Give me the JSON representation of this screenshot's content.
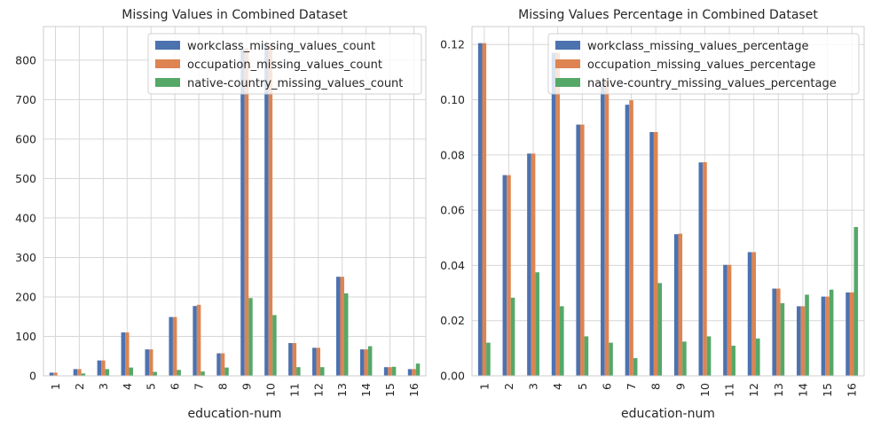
{
  "colors": {
    "workclass": "#4c72b0",
    "occupation": "#dd8452",
    "native_country": "#55a868",
    "grid": "#d6d6d6",
    "frame": "#cccccc",
    "legend_border": "#d0d0d0"
  },
  "chart_data": [
    {
      "type": "bar",
      "title": "Missing Values in Combined Dataset",
      "xlabel": "education-num",
      "ylabel": "",
      "categories": [
        "1",
        "2",
        "3",
        "4",
        "5",
        "6",
        "7",
        "8",
        "9",
        "10",
        "11",
        "12",
        "13",
        "14",
        "15",
        "16"
      ],
      "ylim": [
        0,
        885
      ],
      "yticks": [
        0,
        100,
        200,
        300,
        400,
        500,
        600,
        700,
        800
      ],
      "ytick_labels": [
        "0",
        "100",
        "200",
        "300",
        "400",
        "500",
        "600",
        "700",
        "800"
      ],
      "grid": true,
      "legend_position": "top-right",
      "series": [
        {
          "name": "workclass_missing_values_count",
          "color_key": "workclass",
          "values": [
            8,
            17,
            39,
            110,
            67,
            149,
            177,
            57,
            828,
            835,
            83,
            71,
            251,
            67,
            22,
            17
          ]
        },
        {
          "name": "occupation_missing_values_count",
          "color_key": "occupation",
          "values": [
            8,
            17,
            39,
            110,
            67,
            149,
            180,
            57,
            830,
            838,
            83,
            71,
            251,
            67,
            22,
            17
          ]
        },
        {
          "name": "native-country_missing_values_count",
          "color_key": "native_country",
          "values": [
            1,
            6,
            17,
            21,
            10,
            15,
            11,
            21,
            197,
            154,
            22,
            22,
            209,
            75,
            23,
            31
          ]
        }
      ]
    },
    {
      "type": "bar",
      "title": "Missing Values Percentage in Combined Dataset",
      "xlabel": "education-num",
      "ylabel": "",
      "categories": [
        "1",
        "2",
        "3",
        "4",
        "5",
        "6",
        "7",
        "8",
        "9",
        "10",
        "11",
        "12",
        "13",
        "14",
        "15",
        "16"
      ],
      "ylim": [
        0,
        0.1265
      ],
      "yticks": [
        0,
        0.02,
        0.04,
        0.06,
        0.08,
        0.1,
        0.12
      ],
      "ytick_labels": [
        "0.00",
        "0.02",
        "0.04",
        "0.06",
        "0.08",
        "0.10",
        "0.12"
      ],
      "grid": true,
      "legend_position": "top-right",
      "series": [
        {
          "name": "workclass_missing_values_percentage",
          "color_key": "workclass",
          "values": [
            0.1205,
            0.0727,
            0.0805,
            0.117,
            0.091,
            0.1062,
            0.0982,
            0.0883,
            0.0513,
            0.0773,
            0.0402,
            0.0448,
            0.0316,
            0.0252,
            0.0287,
            0.0302
          ]
        },
        {
          "name": "occupation_missing_values_percentage",
          "color_key": "occupation",
          "values": [
            0.1205,
            0.0727,
            0.0805,
            0.117,
            0.091,
            0.107,
            0.0998,
            0.0883,
            0.0515,
            0.0774,
            0.0402,
            0.0448,
            0.0316,
            0.0252,
            0.0287,
            0.0302
          ]
        },
        {
          "name": "native-country_missing_values_percentage",
          "color_key": "native_country",
          "values": [
            0.012,
            0.0283,
            0.0375,
            0.0252,
            0.0143,
            0.012,
            0.0064,
            0.0336,
            0.0124,
            0.0143,
            0.0109,
            0.0135,
            0.0263,
            0.0294,
            0.0312,
            0.0539
          ]
        }
      ]
    }
  ]
}
